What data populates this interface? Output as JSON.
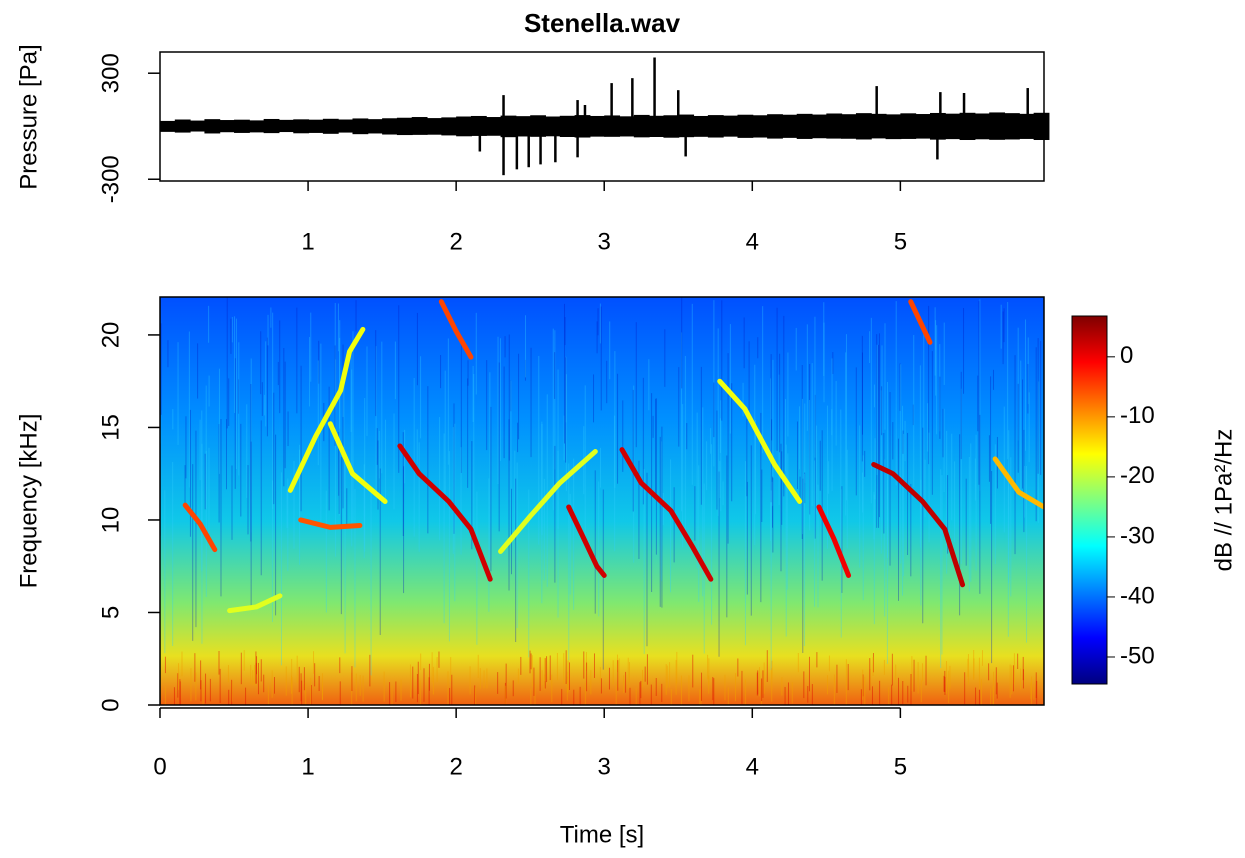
{
  "chart_data": [
    {
      "type": "line",
      "title": "Stenella.wav",
      "ylabel": "Pressure [Pa]",
      "color": "#000000",
      "x": [
        0.0,
        0.1,
        0.2,
        0.3,
        0.4,
        0.5,
        0.6,
        0.7,
        0.8,
        0.9,
        1.0,
        1.1,
        1.2,
        1.3,
        1.4,
        1.5,
        1.6,
        1.7,
        1.8,
        1.9,
        2.0,
        2.1,
        2.2,
        2.3,
        2.4,
        2.5,
        2.6,
        2.7,
        2.8,
        2.9,
        3.0,
        3.1,
        3.2,
        3.3,
        3.4,
        3.5,
        3.6,
        3.7,
        3.8,
        3.9,
        4.0,
        4.1,
        4.2,
        4.3,
        4.4,
        4.5,
        4.6,
        4.7,
        4.8,
        4.9,
        5.0,
        5.1,
        5.2,
        5.3,
        5.4,
        5.5,
        5.6,
        5.7,
        5.8,
        5.9
      ],
      "upper": [
        30,
        38,
        32,
        40,
        35,
        37,
        33,
        41,
        36,
        39,
        37,
        42,
        38,
        44,
        40,
        45,
        48,
        52,
        46,
        50,
        55,
        58,
        52,
        60,
        57,
        62,
        55,
        59,
        63,
        58,
        61,
        56,
        64,
        59,
        62,
        66,
        58,
        63,
        60,
        65,
        62,
        68,
        65,
        70,
        66,
        72,
        68,
        74,
        70,
        67,
        73,
        69,
        75,
        71,
        76,
        72,
        78,
        74,
        70,
        76
      ],
      "lower": [
        -32,
        -36,
        -30,
        -41,
        -34,
        -38,
        -35,
        -39,
        -33,
        -40,
        -38,
        -43,
        -36,
        -45,
        -41,
        -47,
        -50,
        -49,
        -48,
        -52,
        -57,
        -55,
        -54,
        -62,
        -58,
        -60,
        -57,
        -61,
        -64,
        -59,
        -60,
        -58,
        -63,
        -61,
        -65,
        -62,
        -60,
        -64,
        -59,
        -66,
        -64,
        -70,
        -66,
        -72,
        -68,
        -70,
        -71,
        -75,
        -69,
        -73,
        -72,
        -70,
        -76,
        -73,
        -78,
        -74,
        -77,
        -75,
        -72,
        -78
      ],
      "spike_x": [
        2.32,
        2.82,
        2.87,
        3.05,
        3.19,
        3.34,
        3.5,
        4.84,
        5.27,
        5.43,
        5.86,
        2.16,
        2.32,
        2.41,
        2.49,
        2.57,
        2.67,
        2.82,
        3.55,
        5.25
      ],
      "spike_values": [
        176,
        148,
        120,
        244,
        272,
        389,
        204,
        227,
        193,
        188,
        216,
        -143,
        -277,
        -244,
        -232,
        -216,
        -204,
        -176,
        -171,
        -188
      ],
      "xlim": [
        0,
        5.97
      ],
      "ylim": [
        -310,
        420
      ],
      "xticks": [
        1,
        2,
        3,
        4,
        5
      ],
      "yticks": [
        -300,
        300
      ]
    },
    {
      "type": "spectrogram",
      "xlabel": "Time [s]",
      "ylabel": "Frequency [kHz]",
      "xlim": [
        0,
        5.97
      ],
      "ylim": [
        0,
        22.05
      ],
      "xticks": [
        0,
        1,
        2,
        3,
        4,
        5
      ],
      "yticks": [
        0,
        5,
        10,
        15,
        20
      ],
      "contours": [
        {
          "t": [
            1.62,
            1.75,
            1.95,
            2.1,
            2.23
          ],
          "f": [
            14.0,
            12.5,
            11.0,
            9.5,
            6.8
          ],
          "db": 2
        },
        {
          "t": [
            2.76,
            2.85,
            2.95,
            3.0
          ],
          "f": [
            10.7,
            9.2,
            7.5,
            7.0
          ],
          "db": 2
        },
        {
          "t": [
            3.12,
            3.25,
            3.45,
            3.6,
            3.72
          ],
          "f": [
            13.8,
            12.0,
            10.5,
            8.5,
            6.8
          ],
          "db": 2
        },
        {
          "t": [
            4.45,
            4.55,
            4.65
          ],
          "f": [
            10.7,
            9.0,
            7.0
          ],
          "db": 0
        },
        {
          "t": [
            4.82,
            4.95,
            5.15,
            5.3,
            5.42
          ],
          "f": [
            13.0,
            12.5,
            11.0,
            9.5,
            6.5
          ],
          "db": 3
        },
        {
          "t": [
            1.9,
            2.0,
            2.1
          ],
          "f": [
            21.8,
            20.2,
            18.8
          ],
          "db": -5
        },
        {
          "t": [
            5.07,
            5.2
          ],
          "f": [
            21.8,
            19.6
          ],
          "db": -5
        },
        {
          "t": [
            0.17,
            0.27,
            0.37
          ],
          "f": [
            10.8,
            9.8,
            8.4
          ],
          "db": -5
        },
        {
          "t": [
            0.95,
            1.15,
            1.35
          ],
          "f": [
            10.0,
            9.6,
            9.7
          ],
          "db": -6
        },
        {
          "t": [
            0.88,
            1.05,
            1.22,
            1.28,
            1.37
          ],
          "f": [
            11.6,
            14.5,
            17.0,
            19.1,
            20.3
          ],
          "db": -17
        },
        {
          "t": [
            1.15,
            1.3,
            1.52
          ],
          "f": [
            15.2,
            12.5,
            11.0
          ],
          "db": -17
        },
        {
          "t": [
            2.3,
            2.5,
            2.7,
            2.94
          ],
          "f": [
            8.3,
            10.2,
            12.0,
            13.7
          ],
          "db": -18
        },
        {
          "t": [
            3.78,
            3.95,
            4.15,
            4.32
          ],
          "f": [
            17.5,
            16.0,
            13.0,
            11.0
          ],
          "db": -17
        },
        {
          "t": [
            5.64,
            5.8,
            5.97
          ],
          "f": [
            13.3,
            11.5,
            10.7
          ],
          "db": -12
        },
        {
          "t": [
            0.47,
            0.65,
            0.81
          ],
          "f": [
            5.1,
            5.3,
            5.9
          ],
          "db": -18
        }
      ],
      "colorbar": {
        "label": "dB // 1Pa²/Hz",
        "lim": [
          -54.5,
          6.8
        ],
        "ticks": [
          0,
          -10,
          -20,
          -30,
          -40,
          -50
        ]
      }
    }
  ]
}
